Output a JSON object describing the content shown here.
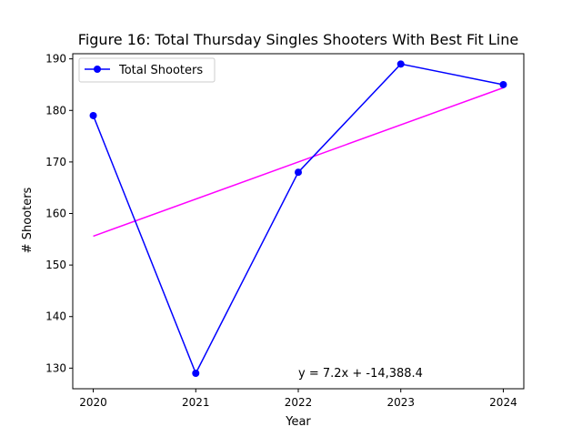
{
  "chart_data": {
    "type": "line",
    "title": "Figure 16: Total Thursday Singles Shooters With Best Fit Line",
    "xlabel": "Year",
    "ylabel": "# Shooters",
    "x": [
      2020,
      2021,
      2022,
      2023,
      2024
    ],
    "x_ticks": [
      "2020",
      "2021",
      "2022",
      "2023",
      "2024"
    ],
    "y_ticks": [
      130,
      140,
      150,
      160,
      170,
      180,
      190
    ],
    "xlim": [
      2019.8,
      2024.2
    ],
    "ylim": [
      126,
      191
    ],
    "grid": false,
    "legend_position": "upper-left",
    "series": [
      {
        "name": "Total Shooters",
        "values": [
          179,
          129,
          168,
          189,
          185
        ],
        "color": "#0000ff",
        "marker": "circle"
      }
    ],
    "fit_line": {
      "x": [
        2020,
        2024
      ],
      "values": [
        155.6,
        184.4
      ],
      "color": "#ff00ff"
    },
    "annotation": {
      "text": "y = 7.2x + -14,388.4",
      "x": 2022,
      "y": 129
    }
  }
}
